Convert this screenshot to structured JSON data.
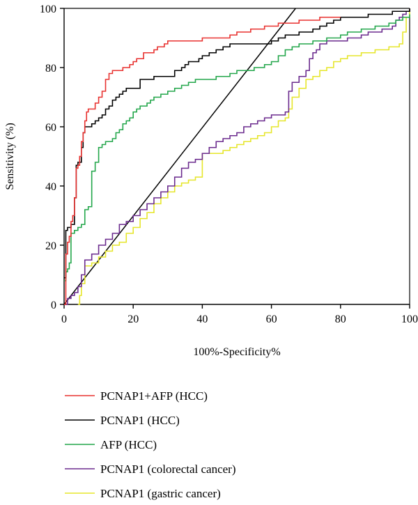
{
  "chart_data": {
    "type": "line",
    "title": "",
    "xlabel": "100%-Specificity%",
    "ylabel": "Sensitivity (%)",
    "xlim": [
      0,
      100
    ],
    "ylim": [
      0,
      100
    ],
    "x_ticks": [
      0,
      20,
      40,
      60,
      80,
      100
    ],
    "y_ticks": [
      0,
      20,
      40,
      60,
      80,
      100
    ],
    "grid": false,
    "legend_position": "bottom",
    "reference_line": {
      "x": [
        0,
        67
      ],
      "y": [
        0,
        100
      ],
      "color": "#000000"
    },
    "series": [
      {
        "name": "PCNAP1+AFP (HCC)",
        "color": "#e8312f",
        "x": [
          0,
          0.5,
          1,
          1.5,
          2,
          2.5,
          3,
          3.5,
          4,
          4.5,
          5,
          5.5,
          6,
          6.5,
          7,
          8,
          9,
          10,
          11,
          12,
          13,
          14,
          15,
          17,
          19,
          20,
          21,
          22,
          23,
          24,
          26,
          27,
          28,
          29,
          30,
          32,
          34,
          36,
          40,
          45,
          48,
          50,
          52,
          54,
          56,
          58,
          60,
          62,
          64,
          66,
          68,
          70,
          72,
          74,
          76,
          78,
          80
        ],
        "y": [
          0,
          17,
          21,
          23,
          28,
          30,
          36,
          46,
          47,
          50,
          55,
          58,
          62,
          65,
          66,
          66,
          68,
          70,
          72,
          76,
          78,
          79,
          79,
          80,
          81,
          82,
          83,
          83,
          85,
          85,
          86,
          87,
          87,
          88,
          89,
          89,
          89,
          89,
          90,
          90,
          91,
          92,
          92,
          93,
          93,
          94,
          94,
          95,
          95,
          95,
          96,
          96,
          96,
          97,
          97,
          97,
          97
        ]
      },
      {
        "name": "PCNAP1 (HCC)",
        "color": "#000000",
        "x": [
          0,
          0.5,
          1,
          2,
          3,
          3.5,
          4,
          5,
          5.5,
          6,
          7,
          8,
          9,
          10,
          11,
          12,
          13,
          14,
          15,
          16,
          17,
          18,
          20,
          22,
          24,
          26,
          28,
          30,
          32,
          34,
          35,
          36,
          38,
          39,
          40,
          42,
          44,
          46,
          48,
          50,
          52,
          55,
          58,
          60,
          62,
          64,
          66,
          68,
          70,
          72,
          74,
          76,
          78,
          80,
          82,
          84,
          86,
          88,
          90,
          92,
          94,
          95,
          97,
          100
        ],
        "y": [
          9,
          25,
          26,
          27,
          36,
          47,
          48,
          53,
          58,
          60,
          60,
          61,
          62,
          63,
          64,
          66,
          67,
          69,
          70,
          71,
          72,
          73,
          73,
          76,
          76,
          77,
          77,
          77,
          79,
          80,
          81,
          82,
          82,
          83,
          84,
          85,
          86,
          87,
          88,
          88,
          88,
          88,
          88,
          89,
          90,
          91,
          91,
          92,
          92,
          93,
          94,
          95,
          96,
          97,
          97,
          97,
          97,
          98,
          98,
          98,
          98,
          99,
          99,
          100
        ]
      },
      {
        "name": "AFP (HCC)",
        "color": "#22a64a",
        "x": [
          0,
          0.5,
          1,
          1.5,
          2,
          3,
          4,
          5,
          6,
          7,
          8,
          9,
          10,
          11,
          12,
          14,
          15,
          16,
          17,
          18,
          19,
          20,
          21,
          22,
          23,
          24,
          25,
          26,
          28,
          30,
          32,
          34,
          35,
          36,
          38,
          40,
          44,
          48,
          50,
          52,
          55,
          58,
          60,
          62,
          64,
          66,
          68,
          70,
          72,
          74,
          76,
          78,
          80,
          82,
          84,
          86,
          88,
          90,
          92,
          94,
          96,
          98,
          100
        ],
        "y": [
          8,
          11,
          12,
          14,
          24,
          25,
          26,
          27,
          32,
          33,
          45,
          48,
          53,
          54,
          55,
          56,
          58,
          59,
          61,
          62,
          63,
          65,
          66,
          67,
          67,
          68,
          69,
          70,
          71,
          72,
          73,
          74,
          74,
          75,
          76,
          76,
          77,
          78,
          79,
          79,
          80,
          81,
          82,
          84,
          86,
          87,
          88,
          88,
          89,
          89,
          90,
          90,
          91,
          92,
          92,
          93,
          93,
          94,
          94,
          95,
          96,
          97,
          98
        ]
      },
      {
        "name": "PCNAP1 (colorectal cancer)",
        "color": "#6b2b8e",
        "x": [
          0,
          1,
          2,
          3,
          4,
          5,
          6,
          8,
          10,
          12,
          14,
          16,
          18,
          20,
          22,
          24,
          26,
          28,
          30,
          32,
          34,
          36,
          38,
          40,
          42,
          44,
          46,
          48,
          50,
          52,
          54,
          56,
          58,
          60,
          62,
          64,
          65,
          66,
          68,
          70,
          71,
          72,
          73,
          74,
          76,
          78,
          80,
          82,
          84,
          86,
          88,
          90,
          92,
          94,
          95,
          96,
          97,
          98,
          99,
          100
        ],
        "y": [
          0,
          2,
          3,
          4,
          6,
          10,
          15,
          17,
          20,
          22,
          24,
          27,
          28,
          30,
          32,
          34,
          36,
          38,
          40,
          43,
          46,
          48,
          49,
          51,
          53,
          55,
          56,
          57,
          58,
          60,
          61,
          62,
          63,
          64,
          64,
          65,
          72,
          75,
          77,
          79,
          83,
          85,
          86,
          88,
          89,
          89,
          89,
          90,
          90,
          91,
          92,
          92,
          93,
          93,
          94,
          96,
          97,
          98,
          99,
          100
        ]
      },
      {
        "name": "PCNAP1 (gastric cancer)",
        "color": "#e6e62a",
        "x": [
          4,
          4.5,
          5,
          6,
          8,
          10,
          12,
          14,
          16,
          18,
          20,
          22,
          24,
          26,
          28,
          30,
          32,
          34,
          36,
          38,
          40,
          42,
          44,
          46,
          48,
          50,
          52,
          54,
          56,
          58,
          60,
          62,
          64,
          65,
          66,
          68,
          70,
          72,
          74,
          76,
          78,
          80,
          82,
          84,
          86,
          88,
          90,
          92,
          94,
          96,
          97,
          98,
          99,
          100
        ],
        "y": [
          0,
          3,
          7,
          13,
          14,
          16,
          18,
          20,
          21,
          24,
          26,
          29,
          31,
          34,
          36,
          38,
          40,
          41,
          42,
          43,
          51,
          51,
          51,
          52,
          53,
          54,
          55,
          56,
          57,
          58,
          60,
          62,
          63,
          66,
          70,
          73,
          76,
          77,
          79,
          80,
          82,
          83,
          84,
          84,
          85,
          85,
          86,
          86,
          87,
          87,
          88,
          92,
          97,
          100
        ]
      }
    ]
  }
}
